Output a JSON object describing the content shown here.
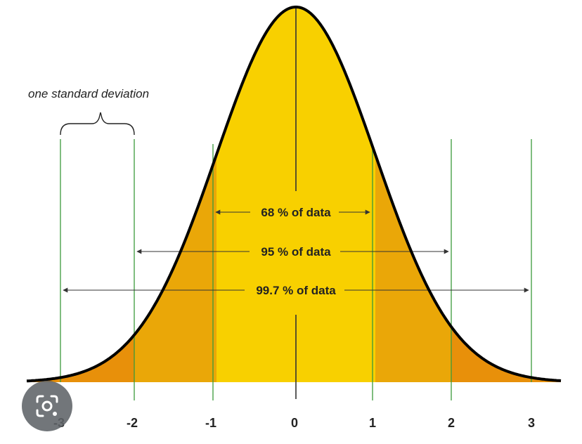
{
  "colors": {
    "background": "#ffffff",
    "band_1sd": "#f8d000",
    "band_2sd": "#eaa708",
    "band_3sd": "#e8900a",
    "curve": "#000000",
    "guide_line": "#3b9a3b",
    "arrow": "#333333",
    "text": "#222222",
    "lens_button": "#5f6368"
  },
  "bracket_label": "one standard deviation",
  "spans": [
    {
      "label": "68 % of data",
      "sd": 1
    },
    {
      "label": "95 % of data",
      "sd": 2
    },
    {
      "label": "99.7 % of data",
      "sd": 3
    }
  ],
  "ticks": [
    "-3",
    "-2",
    "-1",
    "0",
    "1",
    "2",
    "3"
  ],
  "icons": {
    "lens": "google-lens-camera-icon"
  }
}
